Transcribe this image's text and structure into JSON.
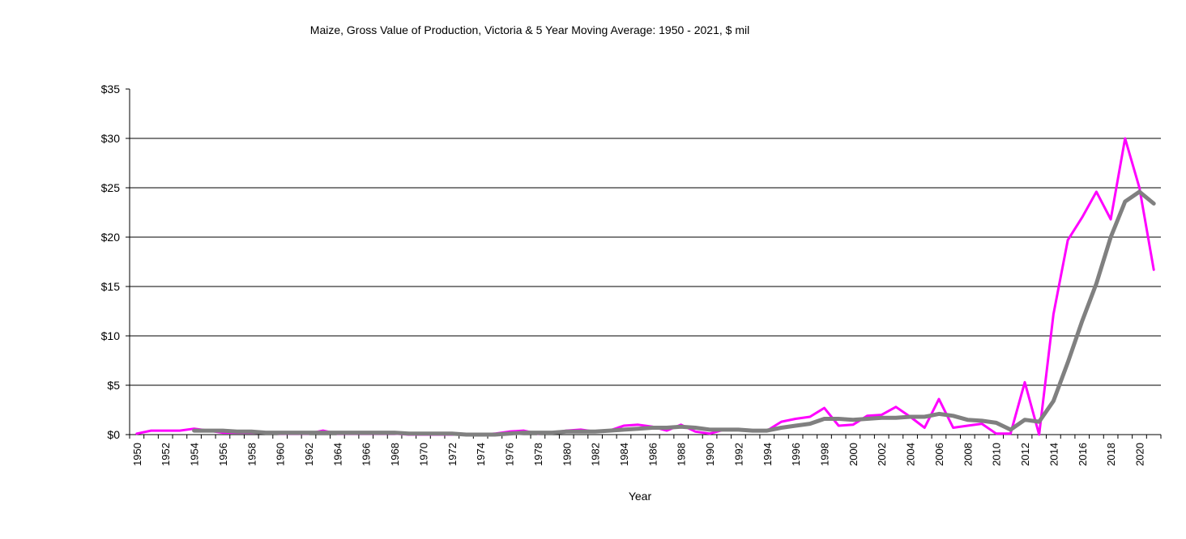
{
  "chart_data": {
    "type": "line",
    "title": "Maize, Gross Value of Production, Victoria & 5 Year Moving Average: 1950 - 2021, $ mil",
    "xlabel": "Year",
    "ylabel": "",
    "ylim": [
      0,
      35
    ],
    "yticks": [
      0,
      5,
      10,
      15,
      20,
      25,
      30,
      35
    ],
    "ytick_labels": [
      "$0",
      "$5",
      "$10",
      "$15",
      "$20",
      "$25",
      "$30",
      "$35"
    ],
    "grid": true,
    "legend": "none",
    "x": [
      1950,
      1951,
      1952,
      1953,
      1954,
      1955,
      1956,
      1957,
      1958,
      1959,
      1960,
      1961,
      1962,
      1963,
      1964,
      1965,
      1966,
      1967,
      1968,
      1969,
      1970,
      1971,
      1972,
      1973,
      1974,
      1975,
      1976,
      1977,
      1978,
      1979,
      1980,
      1981,
      1982,
      1983,
      1984,
      1985,
      1986,
      1987,
      1988,
      1989,
      1990,
      1991,
      1992,
      1993,
      1994,
      1995,
      1996,
      1997,
      1998,
      1999,
      2000,
      2001,
      2002,
      2003,
      2004,
      2005,
      2006,
      2007,
      2008,
      2009,
      2010,
      2011,
      2012,
      2013,
      2014,
      2015,
      2016,
      2017,
      2018,
      2019,
      2020,
      2021
    ],
    "xtick_labels": [
      "1950",
      "1952",
      "1954",
      "1956",
      "1958",
      "1960",
      "1962",
      "1964",
      "1966",
      "1968",
      "1970",
      "1972",
      "1974",
      "1976",
      "1978",
      "1980",
      "1982",
      "1984",
      "1986",
      "1988",
      "1990",
      "1992",
      "1994",
      "1996",
      "1998",
      "2000",
      "2002",
      "2004",
      "2006",
      "2008",
      "2010",
      "2012",
      "2014",
      "2016",
      "2018",
      "2020"
    ],
    "series": [
      {
        "name": "Gross Value of Production",
        "color": "#ff00ff",
        "values": [
          0.1,
          0.4,
          0.4,
          0.4,
          0.6,
          0.4,
          0.2,
          0.2,
          0.2,
          0.2,
          0.1,
          0.1,
          0.1,
          0.4,
          0.1,
          0.1,
          0.1,
          0.1,
          0.1,
          0.0,
          0.0,
          0.0,
          0.0,
          0.0,
          0.0,
          0.1,
          0.3,
          0.4,
          0.1,
          0.2,
          0.4,
          0.5,
          0.3,
          0.4,
          0.9,
          1.0,
          0.8,
          0.4,
          1.0,
          0.3,
          0.1,
          0.5,
          0.5,
          0.4,
          0.4,
          1.3,
          1.6,
          1.8,
          2.7,
          0.9,
          1.0,
          1.9,
          2.0,
          2.8,
          1.8,
          0.7,
          3.6,
          0.7,
          0.9,
          1.1,
          0.1,
          0.1,
          5.3,
          0.0,
          12.2,
          19.7,
          22.0,
          24.6,
          21.8,
          30.0,
          25.0,
          16.7
        ]
      },
      {
        "name": "5 Year Moving Average",
        "color": "#808080",
        "values": [
          null,
          null,
          null,
          null,
          0.4,
          0.4,
          0.4,
          0.3,
          0.3,
          0.2,
          0.2,
          0.2,
          0.2,
          0.2,
          0.2,
          0.2,
          0.2,
          0.2,
          0.2,
          0.1,
          0.1,
          0.1,
          0.1,
          0.0,
          0.0,
          0.0,
          0.1,
          0.2,
          0.2,
          0.2,
          0.3,
          0.3,
          0.3,
          0.4,
          0.5,
          0.6,
          0.7,
          0.7,
          0.8,
          0.7,
          0.5,
          0.5,
          0.5,
          0.4,
          0.4,
          0.7,
          0.9,
          1.1,
          1.6,
          1.6,
          1.5,
          1.6,
          1.7,
          1.7,
          1.8,
          1.8,
          2.1,
          1.9,
          1.5,
          1.4,
          1.2,
          0.5,
          1.5,
          1.3,
          3.4,
          7.3,
          11.5,
          15.3,
          20.0,
          23.6,
          24.6,
          23.4
        ]
      }
    ]
  }
}
